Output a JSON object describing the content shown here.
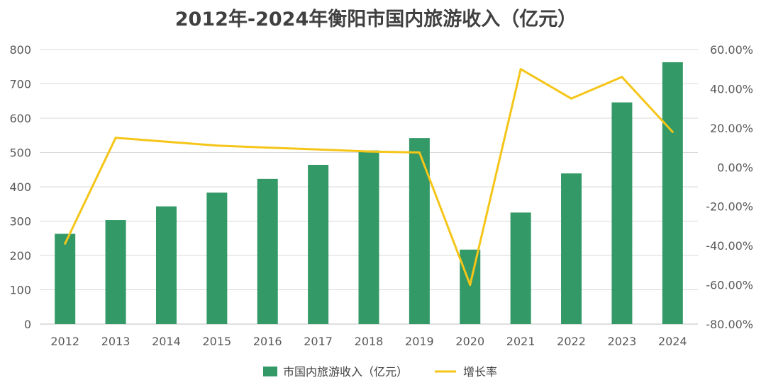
{
  "chart_data": {
    "type": "bar",
    "title": "2012年-2024年衡阳市国内旅游收入（亿元）",
    "categories": [
      "2012",
      "2013",
      "2014",
      "2015",
      "2016",
      "2017",
      "2018",
      "2019",
      "2020",
      "2021",
      "2022",
      "2023",
      "2024"
    ],
    "series": [
      {
        "name": "市国内旅游收入（亿元）",
        "type": "bar",
        "axis": "left",
        "color": "#339966",
        "values": [
          263,
          303,
          343,
          383,
          423,
          464,
          506,
          542,
          217,
          325,
          439,
          646,
          763
        ]
      },
      {
        "name": "增长率",
        "type": "line",
        "axis": "right",
        "color": "#f5c518",
        "values": [
          -39.0,
          15.0,
          13.0,
          11.0,
          10.0,
          9.0,
          8.0,
          7.5,
          -60.0,
          50.0,
          35.0,
          46.0,
          18.0
        ]
      }
    ],
    "y_left": {
      "lim": [
        0,
        800
      ],
      "ticks": [
        "0",
        "100",
        "200",
        "300",
        "400",
        "500",
        "600",
        "700",
        "800"
      ]
    },
    "y_right": {
      "lim": [
        -80,
        60
      ],
      "ticks": [
        "-80.00%",
        "-60.00%",
        "-40.00%",
        "-20.00%",
        "0.00%",
        "20.00%",
        "40.00%",
        "60.00%"
      ]
    },
    "grid": true,
    "legend_position": "bottom"
  }
}
